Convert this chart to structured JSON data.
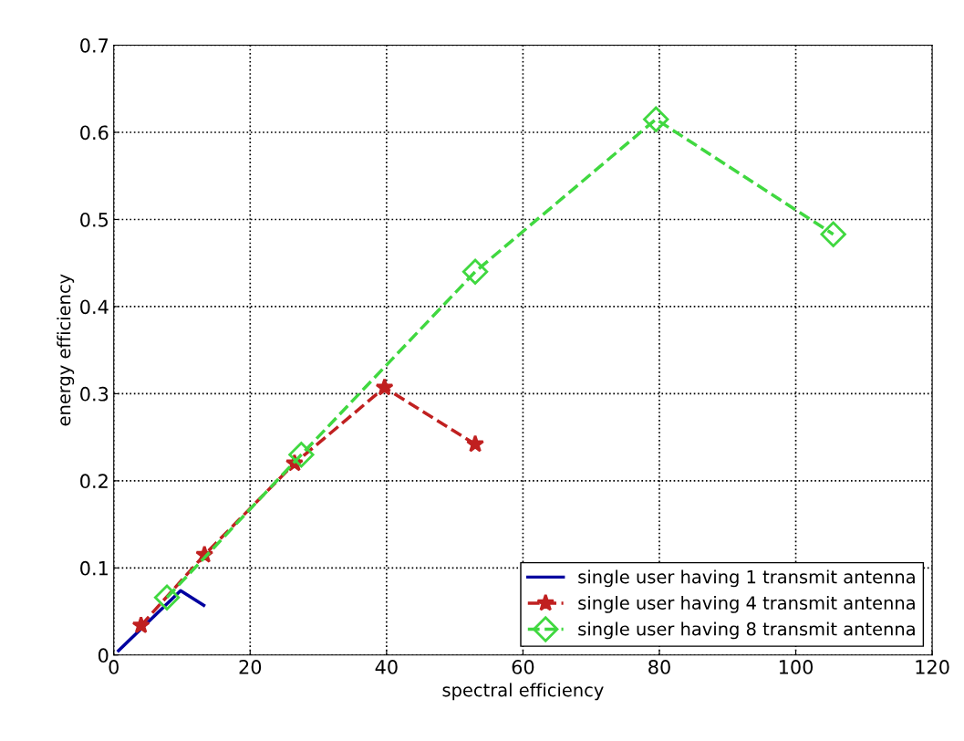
{
  "chart_data": {
    "type": "line",
    "xlabel": "spectral efficiency",
    "ylabel": "energy efficiency",
    "xlim": [
      0,
      120
    ],
    "xticks": [
      0,
      20,
      40,
      60,
      80,
      100,
      120
    ],
    "ylim": [
      0,
      0.7
    ],
    "yticks": [
      0,
      0.1,
      0.2,
      0.3,
      0.4,
      0.5,
      0.6,
      0.7
    ],
    "grid": true,
    "legend": "bottom right",
    "series": [
      {
        "name": "single user having 1 transmit antenna",
        "color": "#0000a0",
        "marker": "none",
        "line_style": "solid",
        "x": [
          0.7,
          9.8,
          13.2
        ],
        "values": [
          0.005,
          0.074,
          0.057
        ]
      },
      {
        "name": "single user having 4 transmit antenna",
        "color": "#c02020",
        "marker": "star",
        "line_style": "dashed",
        "x": [
          4,
          13.3,
          26.5,
          39.7,
          53
        ],
        "values": [
          0.034,
          0.115,
          0.22,
          0.307,
          0.242
        ]
      },
      {
        "name": "single user having 8 transmit antenna",
        "color": "#40d840",
        "marker": "diamond",
        "line_style": "dashed",
        "x": [
          7.8,
          27.5,
          53,
          79.5,
          105.5
        ],
        "values": [
          0.066,
          0.23,
          0.44,
          0.615,
          0.483
        ]
      }
    ]
  }
}
